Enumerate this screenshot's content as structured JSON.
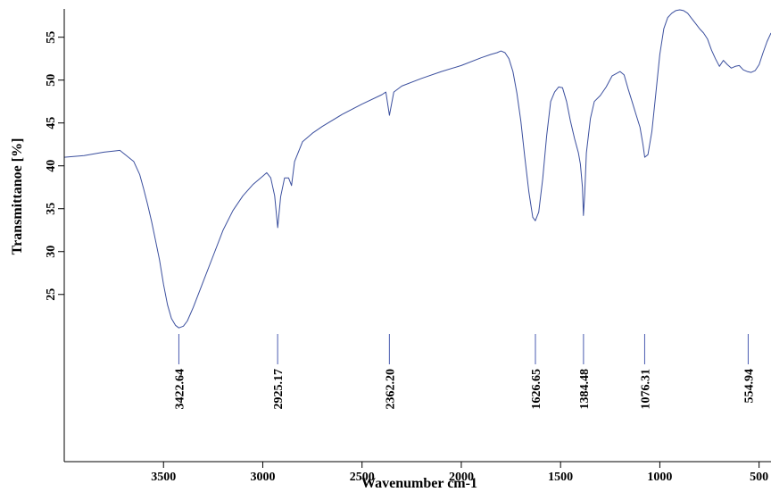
{
  "chart_data": {
    "type": "line",
    "title": "",
    "xlabel": "Wavenumber cm-1",
    "ylabel": "Transmittanoe [%]",
    "xlim": [
      4000,
      440
    ],
    "ylim": [
      5.5,
      58.3
    ],
    "x_reversed": true,
    "x_ticks": [
      3500,
      3000,
      2500,
      2000,
      1500,
      1000,
      500
    ],
    "y_ticks": [
      25,
      30,
      35,
      40,
      45,
      50,
      55
    ],
    "grid": false,
    "legend": "none",
    "line_color": "#3b4f9e",
    "peak_marker_color": "#4a5bb0",
    "series": [
      {
        "x": [
          4000,
          3900,
          3800,
          3720,
          3650,
          3620,
          3600,
          3580,
          3560,
          3540,
          3520,
          3500,
          3480,
          3460,
          3440,
          3423,
          3400,
          3380,
          3350,
          3300,
          3250,
          3200,
          3150,
          3100,
          3050,
          3000,
          2980,
          2960,
          2940,
          2925,
          2910,
          2890,
          2870,
          2855,
          2840,
          2800,
          2750,
          2700,
          2600,
          2500,
          2400,
          2380,
          2362,
          2340,
          2300,
          2200,
          2100,
          2000,
          1900,
          1850,
          1820,
          1800,
          1780,
          1760,
          1740,
          1720,
          1700,
          1680,
          1660,
          1640,
          1627,
          1610,
          1590,
          1570,
          1550,
          1530,
          1510,
          1490,
          1470,
          1450,
          1430,
          1410,
          1400,
          1390,
          1385,
          1378,
          1370,
          1350,
          1330,
          1300,
          1270,
          1240,
          1200,
          1180,
          1160,
          1140,
          1120,
          1100,
          1085,
          1076,
          1060,
          1040,
          1020,
          1000,
          980,
          960,
          940,
          920,
          900,
          880,
          860,
          840,
          820,
          800,
          780,
          760,
          740,
          720,
          700,
          680,
          660,
          640,
          620,
          600,
          580,
          560,
          540,
          520,
          500,
          480,
          460,
          440
        ],
        "y": [
          41,
          41.2,
          41.6,
          41.8,
          40.5,
          39,
          37.3,
          35.5,
          33.5,
          31.3,
          29,
          26.2,
          23.8,
          22.2,
          21.4,
          21.1,
          21.3,
          21.9,
          23.5,
          26.5,
          29.5,
          32.5,
          34.8,
          36.5,
          37.8,
          38.8,
          39.2,
          38.6,
          36.5,
          32.8,
          36.4,
          38.6,
          38.6,
          37.7,
          40.5,
          42.8,
          43.8,
          44.6,
          46,
          47.2,
          48.3,
          48.6,
          45.9,
          48.6,
          49.3,
          50.2,
          51,
          51.7,
          52.6,
          53,
          53.2,
          53.4,
          53.2,
          52.5,
          51,
          48.5,
          45.2,
          41,
          37,
          34,
          33.6,
          34.6,
          38.5,
          43.5,
          47.5,
          48.6,
          49.2,
          49.1,
          47.5,
          45.2,
          43.2,
          41.5,
          40.2,
          37.5,
          34.2,
          36.8,
          41.5,
          45.5,
          47.5,
          48.2,
          49.2,
          50.5,
          51,
          50.6,
          49,
          47.5,
          46,
          44.5,
          42.5,
          41,
          41.3,
          44,
          48.5,
          53,
          56,
          57.3,
          57.8,
          58.1,
          58.2,
          58.1,
          57.8,
          57.2,
          56.6,
          56,
          55.5,
          54.8,
          53.5,
          52.5,
          51.6,
          52.3,
          51.8,
          51.4,
          51.6,
          51.7,
          51.2,
          51,
          50.9,
          51.1,
          51.8,
          53.2,
          54.5,
          55.5
        ]
      }
    ],
    "peak_markers": [
      {
        "x": 3422.64,
        "label": "3422.64"
      },
      {
        "x": 2925.17,
        "label": "2925.17"
      },
      {
        "x": 2362.2,
        "label": "2362.20"
      },
      {
        "x": 1626.65,
        "label": "1626.65"
      },
      {
        "x": 1384.48,
        "label": "1384.48"
      },
      {
        "x": 1076.31,
        "label": "1076.31"
      },
      {
        "x": 554.94,
        "label": "554.94"
      }
    ]
  }
}
